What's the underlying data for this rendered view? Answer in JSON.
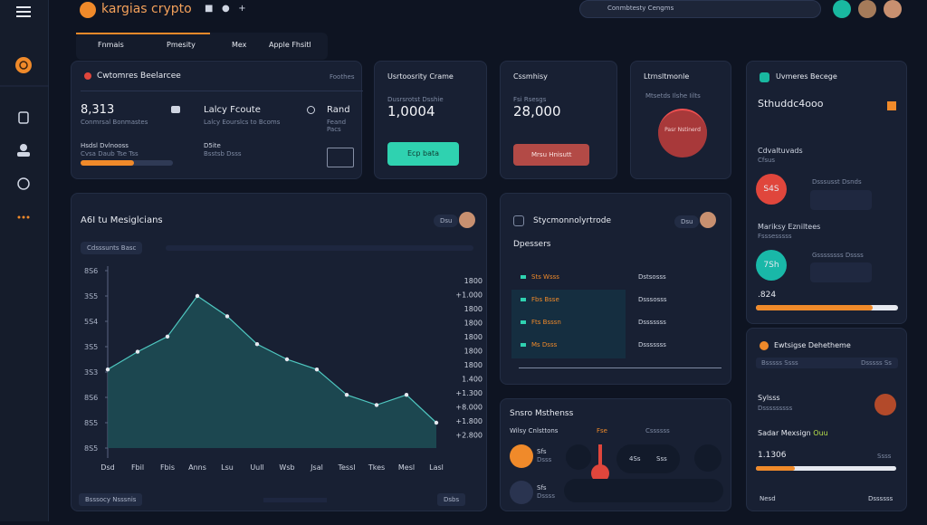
{
  "app": {
    "logo": "kargias crypto",
    "search": "Conmbtesty Cengms"
  },
  "tabs": [
    "Fnmais",
    "Pmesity",
    "Mex",
    "Apple Fhsitl"
  ],
  "balance_card": {
    "title": "Cwtomres Beelarcee",
    "link": "Foothes",
    "value": "8,313",
    "value_sub": "Conmrsal Bonmastes",
    "mid_title": "Lalcy Fcoute",
    "mid_sub": "Lalcy Eourslcs to Bcoms",
    "right_title": "Rand",
    "right_sub": "Feand Pacs",
    "progress_label": "Hsdsl Dvlnooss",
    "progress_sub": "Cvsa Daub Tse Tss",
    "status_label": "D5ite",
    "status_sub": "Bsstsb Dsss"
  },
  "stats": [
    {
      "title": "Usrtoosrity Crame",
      "sub": "Dusrsrotst Dsshie",
      "value": "1,0004",
      "button": "Ecp bata"
    },
    {
      "title": "Cssmhisy",
      "sub": "Fsi Rsesgs",
      "value": "28,000",
      "button": "Mrsu Hnisutt"
    }
  ],
  "gauge_card": {
    "title": "Ltrnsltmonle",
    "sub": "Mtsetds Ilshe Iilts",
    "circle": "Pasr Nstinerd"
  },
  "users_card": {
    "title": "Uvmeres Becege",
    "value": "Sthuddc4ooo",
    "section1": "Cdvaltuvads",
    "section1_sub": "Cfsus",
    "circle1": "S4S",
    "item1": "Dsssusst Dsnds",
    "section2": "Mariksy Ezniltees",
    "section2_sub": "Fsssesssss",
    "circle2": "7Sh",
    "item2": "Gssssssss Dssss",
    "value2": ".824"
  },
  "chart": {
    "title": "A6I tu Mesiglcians",
    "chip": "Dsu",
    "filter": "Cdsssunts Basc",
    "categories": [
      "Dsd",
      "Fbil",
      "Fbis",
      "Anns",
      "Lsu",
      "Uull",
      "Wsb",
      "Jsal",
      "Tessl",
      "Tkes",
      "Mesl",
      "Lasl"
    ],
    "values": [
      31,
      38,
      44,
      60,
      52,
      41,
      35,
      31,
      21,
      17,
      21,
      10
    ],
    "ylim": [
      0,
      75
    ],
    "yticks": [
      {
        "value": 70,
        "label": "8S6"
      },
      {
        "value": 60,
        "label": "3S5"
      },
      {
        "value": 50,
        "label": "5S4"
      },
      {
        "value": 40,
        "label": "3S5"
      },
      {
        "value": 30,
        "label": "3S3"
      },
      {
        "value": 20,
        "label": "8S6"
      },
      {
        "value": 10,
        "label": "8S5"
      },
      {
        "value": 0,
        "label": "8S5"
      }
    ],
    "right_labels": [
      "1800",
      "+1.000",
      "1800",
      "1800",
      "1800",
      "1800",
      "1800",
      "1.400",
      "+1.300",
      "+8.000",
      "+1.800",
      "+2.800"
    ],
    "footer_left": "Bsssocy Nsssnis",
    "footer_right": "Dsbs"
  },
  "orders_card": {
    "title": "Stycmonnolyrtrode",
    "chip": "Dsu",
    "sub": "Dpessers",
    "rows": [
      [
        "Sts Wsss",
        "Dstsosss"
      ],
      [
        "Fbs Bsse",
        "Dsssosss"
      ],
      [
        "Fts Bsssn",
        "Dsssssss"
      ],
      [
        "Ms Dsss",
        "Dsssssss"
      ]
    ]
  },
  "sensor_card": {
    "title": "Snsro Msthenss",
    "sub": "Wilsy Cnlsttons",
    "chip": "Fse",
    "col": "Cssssss",
    "items": [
      [
        "Sfs",
        "Dsss"
      ],
      [
        "Sfs",
        "Dssss"
      ]
    ],
    "g1": "4Ss",
    "g2": "Sss"
  },
  "exchange_card": {
    "title": "Ewtsigse Dehetheme",
    "link": "Bsssss Ssss",
    "row_right": "Dsssss Ss",
    "label1": "Sylsss",
    "sub1": "Dsssssssss",
    "label2": "Sadar Mexsign",
    "tag2": "Ouu",
    "value": "1.1306",
    "value_right": "Ssss",
    "footer_left": "Nesd",
    "footer_right": "Dssssss"
  }
}
